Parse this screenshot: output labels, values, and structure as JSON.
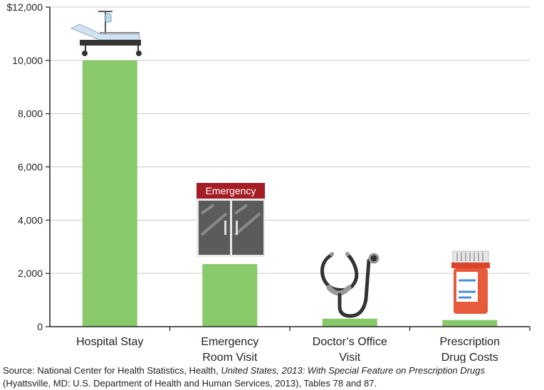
{
  "chart_data": {
    "type": "bar",
    "categories": [
      [
        "Hospital Stay"
      ],
      [
        "Emergency",
        "Room Visit"
      ],
      [
        "Doctor’s Office",
        "Visit"
      ],
      [
        "Prescription",
        "Drug Costs"
      ]
    ],
    "values": [
      10000,
      2350,
      300,
      250
    ],
    "ylim": [
      0,
      12000
    ],
    "yticks": [
      0,
      2000,
      4000,
      6000,
      8000,
      10000,
      12000
    ],
    "ytick_labels": [
      "0",
      "2,000",
      "4,000",
      "6,000",
      "8,000",
      "10,000",
      "$12,000"
    ],
    "grid": true,
    "bar_color": "#88c96a",
    "icons": [
      "hospital-bed-icon",
      "emergency-door-icon",
      "stethoscope-icon",
      "pill-bottle-icon"
    ],
    "emergency_sign": "Emergency"
  },
  "source": {
    "prefix": "Source: National Center for Health Statistics, Health, ",
    "italic": "United States, 2013: With Special Feature on Prescription Drugs",
    "suffix": "(Hyattsville, MD: U.S. Department of Health and Human Services, 2013), Tables 78 and 87."
  },
  "colors": {
    "grid": "#c8c8c8",
    "axis": "#222222",
    "emergency": "#a51d24",
    "glass": "#5b5b5b",
    "bottle": "#e85a3c"
  }
}
